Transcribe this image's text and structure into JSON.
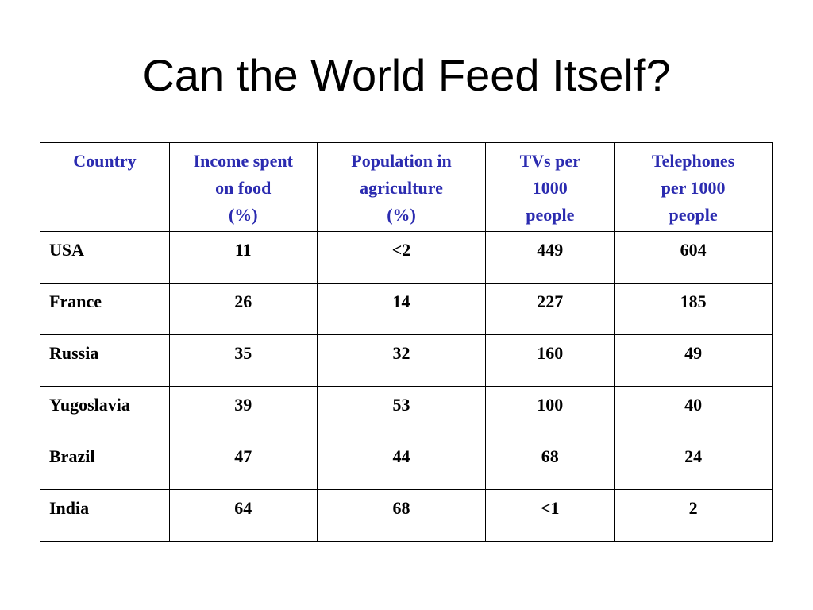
{
  "slide": {
    "title": "Can the World Feed Itself?"
  },
  "table": {
    "header_color": "#2b2bb0",
    "columns": [
      {
        "lines": [
          "Country"
        ]
      },
      {
        "lines": [
          "Income spent",
          "on food",
          "(%)"
        ]
      },
      {
        "lines": [
          "Population in",
          "agriculture",
          "(%)"
        ]
      },
      {
        "lines": [
          "TVs per",
          "1000",
          "people"
        ]
      },
      {
        "lines": [
          "Telephones",
          "per 1000",
          "people"
        ]
      }
    ],
    "rows": [
      {
        "country": "USA",
        "income_food": "11",
        "pop_agriculture": "<2",
        "tvs": "449",
        "telephones": "604"
      },
      {
        "country": "France",
        "income_food": "26",
        "pop_agriculture": "14",
        "tvs": "227",
        "telephones": "185"
      },
      {
        "country": "Russia",
        "income_food": "35",
        "pop_agriculture": "32",
        "tvs": "160",
        "telephones": "49"
      },
      {
        "country": "Yugoslavia",
        "income_food": "39",
        "pop_agriculture": "53",
        "tvs": "100",
        "telephones": "40"
      },
      {
        "country": "Brazil",
        "income_food": "47",
        "pop_agriculture": "44",
        "tvs": "68",
        "telephones": "24"
      },
      {
        "country": "India",
        "income_food": "64",
        "pop_agriculture": "68",
        "tvs": "<1",
        "telephones": "2"
      }
    ]
  }
}
